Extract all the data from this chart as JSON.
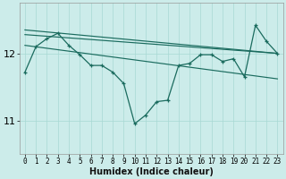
{
  "xlabel": "Humidex (Indice chaleur)",
  "bg_color": "#ccecea",
  "line_color": "#1a6b5e",
  "grid_color": "#a8d8d4",
  "x_ticks": [
    0,
    1,
    2,
    3,
    4,
    5,
    6,
    7,
    8,
    9,
    10,
    11,
    12,
    13,
    14,
    15,
    16,
    17,
    18,
    19,
    20,
    21,
    22,
    23
  ],
  "y_ticks": [
    11,
    12
  ],
  "ylim": [
    10.5,
    12.75
  ],
  "xlim": [
    -0.5,
    23.5
  ],
  "line_main_y": [
    11.72,
    12.1,
    12.22,
    12.3,
    12.12,
    11.98,
    11.82,
    11.82,
    11.72,
    11.55,
    10.95,
    11.08,
    11.28,
    11.3,
    11.82,
    11.85,
    11.98,
    11.98,
    11.88,
    11.92,
    11.65,
    12.42,
    12.18,
    12.0
  ],
  "env_line1_x": [
    0,
    23
  ],
  "env_line1_y": [
    12.35,
    12.0
  ],
  "env_line2_x": [
    0,
    23
  ],
  "env_line2_y": [
    12.28,
    12.0
  ],
  "env_line3_x": [
    0,
    23
  ],
  "env_line3_y": [
    12.12,
    11.62
  ],
  "tick_fontsize": 5.5,
  "xlabel_fontsize": 7,
  "ylabel_fontsize": 8
}
